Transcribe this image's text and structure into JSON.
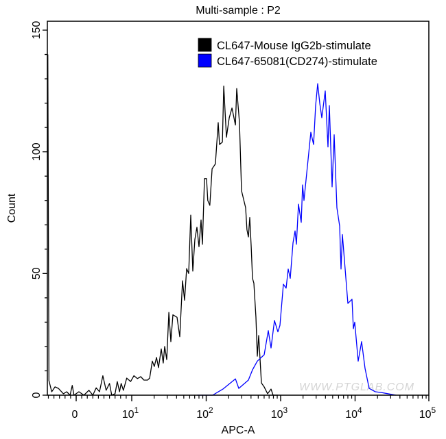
{
  "chart_data": {
    "type": "line",
    "title": "Multi-sample : P2",
    "xlabel": "APC-A",
    "ylabel": "Count",
    "x_scale": "biexponential",
    "xlim": [
      -5,
      100000
    ],
    "ylim": [
      0,
      154
    ],
    "x_ticks": [
      {
        "value": 0,
        "base": "0",
        "exp": ""
      },
      {
        "value": 10,
        "base": "10",
        "exp": "1"
      },
      {
        "value": 100,
        "base": "10",
        "exp": "2"
      },
      {
        "value": 1000,
        "base": "10",
        "exp": "3"
      },
      {
        "value": 10000,
        "base": "10",
        "exp": "4"
      },
      {
        "value": 100000,
        "base": "10",
        "exp": "5"
      }
    ],
    "y_ticks": [
      "0",
      "50",
      "100",
      "150"
    ],
    "grid": false,
    "legend_position": "top-right",
    "watermark": "WWW.PTGLAB.COM",
    "series": [
      {
        "name": "CL647-Mouse IgG2b-stimulate",
        "color": "#000000",
        "x": [
          -5.1,
          -4.9,
          -4.4,
          -3.8,
          -3.2,
          -2.3,
          -1.7,
          -1.1,
          -0.7,
          -0.4,
          0.5,
          1.4,
          2.3,
          3.0,
          3.6,
          4.2,
          4.8,
          5.4,
          6.0,
          6.4,
          7.0,
          7.4,
          7.8,
          8.1,
          8.5,
          9.1,
          9.8,
          10.7,
          11.9,
          13.2,
          14.6,
          16.3,
          17.4,
          18.9,
          20.1,
          21.5,
          22.9,
          24.9,
          26.5,
          27.7,
          29.5,
          31.5,
          33.5,
          35.7,
          40.6,
          44.2,
          48.1,
          51.3,
          54.6,
          58.2,
          62.0,
          66.1,
          70.5,
          75.1,
          80.0,
          85.3,
          89.0,
          94.8,
          101,
          105,
          112,
          120,
          133,
          145,
          151,
          165,
          172,
          187,
          204,
          222,
          247,
          257,
          280,
          298,
          339,
          353,
          369,
          385,
          402,
          419,
          437,
          466,
          486,
          507,
          552,
          601,
          668,
          743,
          792,
          919
        ],
        "y": [
          140,
          6,
          1.4,
          3.4,
          2.8,
          0.6,
          1.4,
          0,
          4,
          0,
          1.4,
          0,
          2,
          0,
          3,
          1.4,
          8,
          2,
          4.8,
          0,
          0.6,
          5.6,
          1.4,
          4.8,
          2,
          7,
          5.6,
          8,
          6.8,
          7.6,
          6.2,
          6.2,
          7,
          14,
          11.8,
          15.5,
          11.3,
          19,
          13.2,
          20,
          14.6,
          34,
          22,
          33,
          32,
          24,
          47,
          39,
          52,
          50,
          74,
          51,
          64,
          69,
          61,
          72,
          62,
          89,
          89,
          80,
          78,
          93,
          95,
          112,
          103,
          104,
          127,
          106,
          114,
          118,
          111,
          126,
          112,
          84,
          77,
          68,
          65,
          73,
          61,
          48,
          46,
          32,
          16,
          24.5,
          5,
          3.4,
          0.6,
          2.5,
          0,
          0
        ]
      },
      {
        "name": "CL647-65081(CD274)-stimulate",
        "color": "#0000FF",
        "x": [
          75.1,
          94.8,
          98,
          122,
          168,
          247,
          274,
          369,
          419,
          486,
          601,
          683,
          743,
          826,
          919,
          979,
          1089,
          1185,
          1263,
          1346,
          1465,
          1562,
          1629,
          1736,
          1890,
          1972,
          2057,
          2544,
          2770,
          2951,
          3147,
          3353,
          3573,
          3972,
          4324,
          4513,
          4912,
          5236,
          5700,
          6203,
          6474,
          6753,
          8002,
          9090,
          9484,
          9894,
          11010,
          12240,
          13600,
          15450,
          18700,
          23120,
          28600,
          35350
        ],
        "y": [
          0,
          0,
          0,
          0,
          2.5,
          6.7,
          2.8,
          6.2,
          10.4,
          14,
          16.6,
          26.5,
          19.4,
          30.7,
          26,
          28.7,
          45.6,
          44,
          51.8,
          48,
          62.5,
          67.5,
          62,
          78.5,
          71,
          86.4,
          80,
          108,
          103,
          119,
          128,
          120,
          114,
          125,
          102,
          119,
          85.6,
          107,
          77,
          69.5,
          51.8,
          66,
          37.7,
          39.4,
          27.3,
          30,
          14,
          22,
          11,
          2.8,
          1.4,
          1,
          0.5,
          0
        ]
      }
    ]
  }
}
